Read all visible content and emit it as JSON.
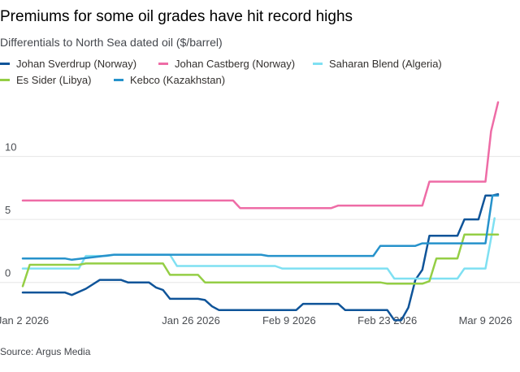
{
  "chart_data": {
    "type": "line",
    "title": "Premiums for some oil grades have hit record highs",
    "subtitle": "Differentials to North Sea dated oil ($/barrel)",
    "source": "Source: Argus Media",
    "ylim": [
      -3.5,
      15
    ],
    "xlim": [
      0,
      70
    ],
    "yticks": [
      {
        "value": 0,
        "label": "0"
      },
      {
        "value": 5,
        "label": "5"
      },
      {
        "value": 10,
        "label": "10"
      }
    ],
    "xticks": [
      {
        "value": 0,
        "label": "Jan 2 2026"
      },
      {
        "value": 24,
        "label": "Jan 26 2026"
      },
      {
        "value": 38,
        "label": "Feb 9 2026"
      },
      {
        "value": 52,
        "label": "Feb 23 2026"
      },
      {
        "value": 66,
        "label": "Mar 9 2026"
      }
    ],
    "grid": true,
    "legend_position": "top",
    "series": [
      {
        "name": "Johan Sverdrup (Norway)",
        "color": "#0f5499",
        "points": [
          [
            0,
            -0.8
          ],
          [
            6,
            -0.8
          ],
          [
            7,
            -1.0
          ],
          [
            9,
            -0.5
          ],
          [
            11,
            0.2
          ],
          [
            14,
            0.2
          ],
          [
            15,
            0.0
          ],
          [
            18,
            0.0
          ],
          [
            19,
            -0.4
          ],
          [
            20,
            -0.6
          ],
          [
            21,
            -1.3
          ],
          [
            25,
            -1.3
          ],
          [
            26,
            -1.4
          ],
          [
            27,
            -1.9
          ],
          [
            28,
            -2.2
          ],
          [
            39,
            -2.2
          ],
          [
            40,
            -1.7
          ],
          [
            45,
            -1.7
          ],
          [
            46,
            -2.2
          ],
          [
            52,
            -2.2
          ],
          [
            53,
            -3.0
          ],
          [
            54,
            -3.0
          ],
          [
            55,
            -2.0
          ],
          [
            56,
            0.2
          ],
          [
            57,
            1.0
          ],
          [
            58,
            3.7
          ],
          [
            62,
            3.7
          ],
          [
            63,
            5.0
          ],
          [
            64,
            5.0
          ],
          [
            65,
            5.0
          ],
          [
            66,
            6.9
          ],
          [
            67,
            6.9
          ],
          [
            67.8,
            7.0
          ]
        ]
      },
      {
        "name": "Johan Castberg (Norway)",
        "color": "#ee6ca6",
        "points": [
          [
            0,
            6.5
          ],
          [
            30,
            6.5
          ],
          [
            31,
            5.9
          ],
          [
            44,
            5.9
          ],
          [
            45,
            6.1
          ],
          [
            57,
            6.1
          ],
          [
            58,
            8.0
          ],
          [
            66,
            8.0
          ],
          [
            66.8,
            12.0
          ],
          [
            67.8,
            14.3
          ]
        ]
      },
      {
        "name": "Saharan Blend (Algeria)",
        "color": "#7fe0f2",
        "points": [
          [
            0,
            1.1
          ],
          [
            8,
            1.1
          ],
          [
            9,
            2.1
          ],
          [
            12,
            2.1
          ],
          [
            13,
            2.2
          ],
          [
            21,
            2.2
          ],
          [
            22,
            1.3
          ],
          [
            36,
            1.3
          ],
          [
            37,
            1.1
          ],
          [
            52,
            1.1
          ],
          [
            53,
            0.3
          ],
          [
            62,
            0.3
          ],
          [
            63,
            1.1
          ],
          [
            66,
            1.1
          ],
          [
            66.8,
            3.5
          ],
          [
            67.3,
            5.1
          ]
        ]
      },
      {
        "name": "Es Sider (Libya)",
        "color": "#94ce45",
        "points": [
          [
            0,
            -0.3
          ],
          [
            1,
            1.4
          ],
          [
            8,
            1.4
          ],
          [
            9,
            1.5
          ],
          [
            20,
            1.5
          ],
          [
            21,
            0.6
          ],
          [
            25,
            0.6
          ],
          [
            26,
            0.0
          ],
          [
            51,
            0.0
          ],
          [
            52,
            -0.1
          ],
          [
            57,
            -0.1
          ],
          [
            58,
            0.1
          ],
          [
            59,
            1.9
          ],
          [
            62,
            1.9
          ],
          [
            63,
            3.8
          ],
          [
            66,
            3.8
          ],
          [
            67.8,
            3.8
          ]
        ]
      },
      {
        "name": "Kebco (Kazakhstan)",
        "color": "#2692cb",
        "points": [
          [
            0,
            1.9
          ],
          [
            6,
            1.9
          ],
          [
            7,
            1.8
          ],
          [
            13,
            2.2
          ],
          [
            34,
            2.2
          ],
          [
            35,
            2.1
          ],
          [
            50,
            2.1
          ],
          [
            51,
            2.9
          ],
          [
            56,
            2.9
          ],
          [
            57,
            3.1
          ],
          [
            66,
            3.1
          ],
          [
            67,
            6.9
          ],
          [
            67.8,
            6.9
          ]
        ]
      }
    ]
  },
  "legend": {
    "items": [
      {
        "label": "Johan Sverdrup (Norway)",
        "color": "#0f5499"
      },
      {
        "label": "Johan Castberg (Norway)",
        "color": "#ee6ca6"
      },
      {
        "label": "Saharan Blend (Algeria)",
        "color": "#7fe0f2"
      },
      {
        "label": "Es Sider (Libya)",
        "color": "#94ce45"
      },
      {
        "label": "Kebco (Kazakhstan)",
        "color": "#2692cb"
      }
    ]
  }
}
